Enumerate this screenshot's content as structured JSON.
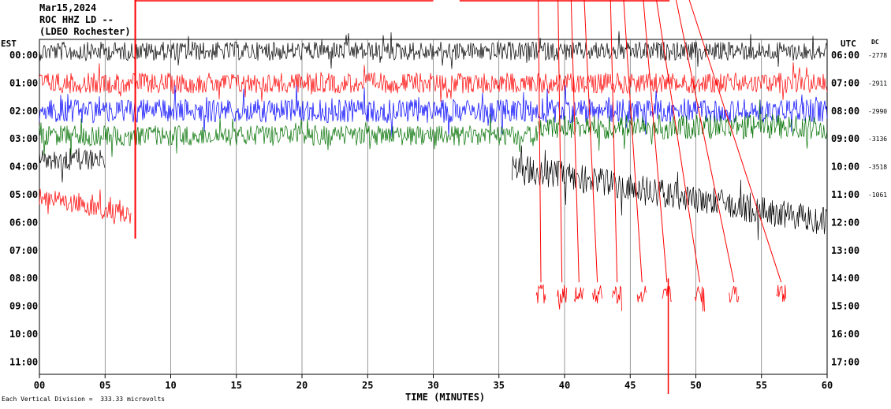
{
  "header": {
    "line1": "Mar15,2024",
    "line2": "ROC HHZ LD --",
    "line3": "(LDEO Rochester)"
  },
  "left_axis_title": "EST",
  "right_axis_title": "UTC",
  "dc_title": "DC",
  "x_axis_title": "TIME (MINUTES)",
  "footnote": "Each Vertical Division =  333.33 microvolts",
  "colors": {
    "black": "#000000",
    "red": "#ff0000",
    "blue": "#0000ff",
    "green": "#007000",
    "grid": "#000000"
  },
  "chart_data": {
    "type": "line",
    "title": "Mar15,2024 ROC HHZ LD -- (LDEO Rochester)",
    "xlabel": "TIME (MINUTES)",
    "xlim": [
      0,
      60
    ],
    "x_ticks": [
      "00",
      "05",
      "10",
      "15",
      "20",
      "25",
      "30",
      "35",
      "40",
      "45",
      "50",
      "55",
      "60"
    ],
    "rows_est": [
      "00:00",
      "01:00",
      "02:00",
      "03:00",
      "04:00",
      "05:00",
      "06:00",
      "07:00",
      "08:00",
      "09:00",
      "10:00",
      "11:00"
    ],
    "rows_utc": [
      "06:00",
      "07:00",
      "08:00",
      "09:00",
      "10:00",
      "11:00",
      "12:00",
      "13:00",
      "14:00",
      "15:00",
      "16:00",
      "17:00"
    ],
    "dc_offsets": [
      "-2778",
      "-2911",
      "-2990",
      "-3136",
      "-3518",
      "-1061"
    ],
    "grid": "vertical lines every 5 minutes",
    "trace_colors_cycle": [
      "black",
      "red",
      "blue",
      "green"
    ],
    "note": "Seismic helicorder; rows 00:00 through 05:00 EST contain traces, later rows appear empty except for clipped red excursions between minutes 38 and 57."
  }
}
